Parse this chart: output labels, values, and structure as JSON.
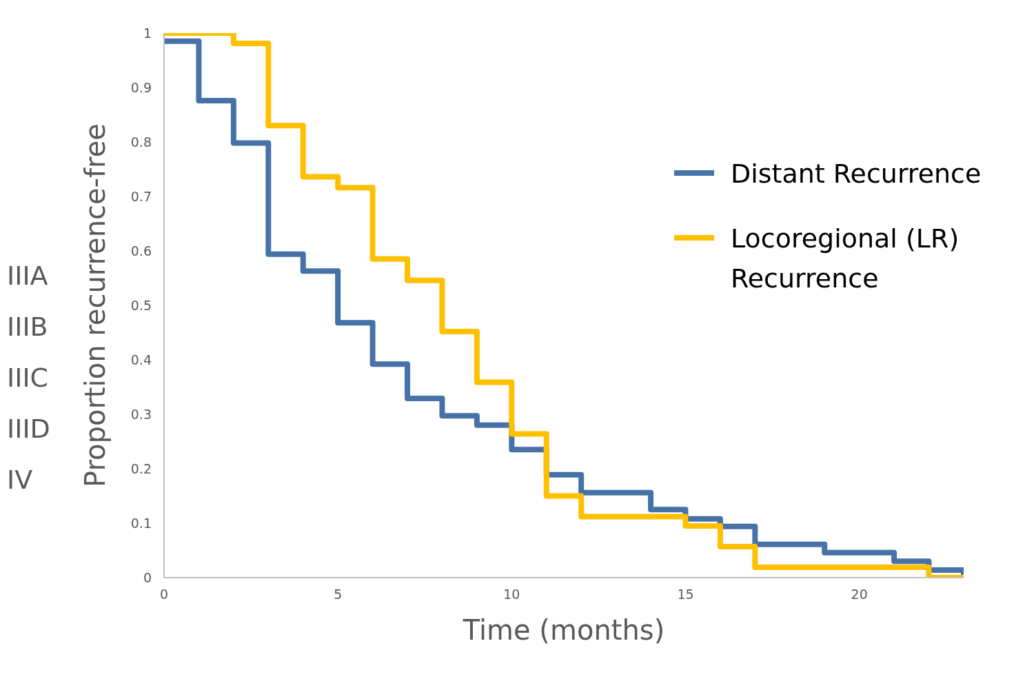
{
  "chart_data": {
    "type": "step",
    "xlabel": "Time (months)",
    "ylabel": "Proportion recurrence-free",
    "xlim": [
      0,
      23
    ],
    "xticks": [
      0,
      5,
      10,
      15,
      20
    ],
    "ylim": [
      0,
      1
    ],
    "yticks": [
      0,
      0.1,
      0.2,
      0.3,
      0.4,
      0.5,
      0.6,
      0.7,
      0.8,
      0.9,
      1
    ],
    "grid": false,
    "legend": "top right",
    "line_style": "solid",
    "marker": "none",
    "annotations": [
      "IIIA",
      "IIIB",
      "IIIC",
      "IIID",
      "IV"
    ],
    "series": [
      {
        "name": "Distant Recurrence",
        "color": "#4672a8",
        "x": [
          0,
          1,
          2,
          3,
          4,
          5,
          6,
          7,
          8,
          9,
          10,
          11,
          12,
          14,
          15,
          16,
          17,
          19,
          21,
          22,
          23
        ],
        "values": [
          0.985,
          0.876,
          0.798,
          0.594,
          0.563,
          0.468,
          0.392,
          0.329,
          0.297,
          0.28,
          0.235,
          0.189,
          0.156,
          0.125,
          0.108,
          0.094,
          0.061,
          0.046,
          0.03,
          0.014,
          0
        ]
      },
      {
        "name": "Locoregional (LR) Recurrence",
        "color": "#ffc000",
        "x": [
          0,
          2,
          3,
          4,
          5,
          6,
          7,
          8,
          9,
          10,
          11,
          12,
          15,
          16,
          17,
          22,
          23
        ],
        "values": [
          1,
          0.981,
          0.83,
          0.736,
          0.716,
          0.585,
          0.546,
          0.452,
          0.359,
          0.264,
          0.15,
          0.112,
          0.095,
          0.057,
          0.019,
          0,
          0
        ]
      }
    ]
  }
}
